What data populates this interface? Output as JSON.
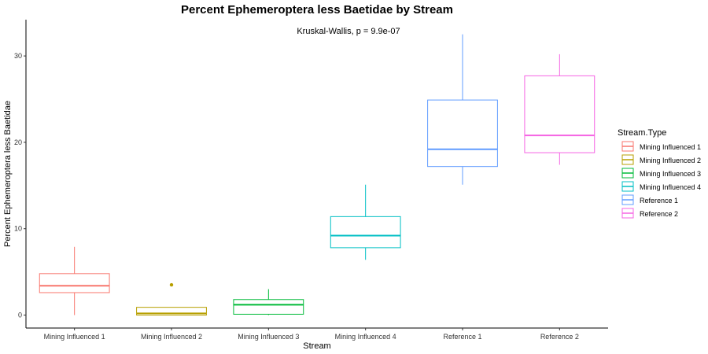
{
  "chart_data": {
    "type": "boxplot",
    "title": "Percent Ephemeroptera less Baetidae by Stream",
    "annotation": "Kruskal-Wallis, p = 9.9e-07",
    "xlabel": "Stream",
    "ylabel": "Percent Ephemeroptera less Baetidae",
    "ylim": [
      -1.5,
      34.2
    ],
    "yticks": [
      0,
      10,
      20,
      30
    ],
    "grid": false,
    "legend": {
      "title": "Stream.Type",
      "position": "right"
    },
    "categories": [
      "Mining Influenced 1",
      "Mining Influenced 2",
      "Mining Influenced 3",
      "Mining Influenced 4",
      "Reference 1",
      "Reference 2"
    ],
    "series": [
      {
        "name": "Mining Influenced 1",
        "color": "#F8766D",
        "whisker_low": 0.0,
        "q1": 2.6,
        "median": 3.4,
        "q3": 4.8,
        "whisker_high": 7.9,
        "outliers": []
      },
      {
        "name": "Mining Influenced 2",
        "color": "#B79F00",
        "whisker_low": 0.0,
        "q1": 0.0,
        "median": 0.2,
        "q3": 0.9,
        "whisker_high": 0.9,
        "outliers": [
          3.5
        ]
      },
      {
        "name": "Mining Influenced 3",
        "color": "#00BA38",
        "whisker_low": 0.0,
        "q1": 0.1,
        "median": 1.2,
        "q3": 1.8,
        "whisker_high": 3.0,
        "outliers": []
      },
      {
        "name": "Mining Influenced 4",
        "color": "#00BFC4",
        "whisker_low": 6.4,
        "q1": 7.8,
        "median": 9.2,
        "q3": 11.4,
        "whisker_high": 15.1,
        "outliers": []
      },
      {
        "name": "Reference 1",
        "color": "#619CFF",
        "whisker_low": 15.1,
        "q1": 17.2,
        "median": 19.2,
        "q3": 24.9,
        "whisker_high": 32.5,
        "outliers": []
      },
      {
        "name": "Reference 2",
        "color": "#F564E3",
        "whisker_low": 17.4,
        "q1": 18.8,
        "median": 20.8,
        "q3": 27.7,
        "whisker_high": 30.2,
        "outliers": []
      }
    ]
  }
}
